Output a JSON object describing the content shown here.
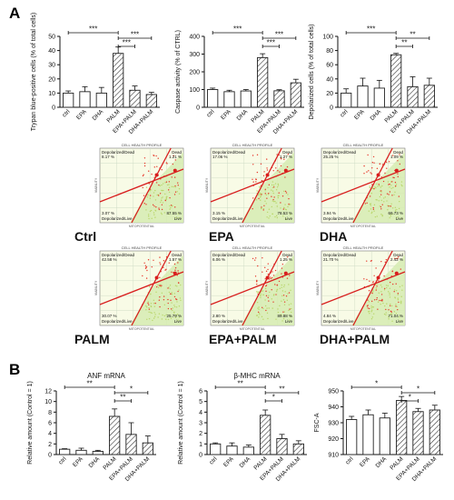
{
  "panel_labels": [
    "A",
    "B"
  ],
  "significance": {
    "p001": "***",
    "p01": "**",
    "p05": "*"
  },
  "colors": {
    "bar_edge": "#222222",
    "bar_fill": "#ffffff",
    "hatch": "#333333",
    "flow_bg": "#f8fbe6",
    "flow_zone": "#d6ebb2",
    "flow_grid": "#c8d8c0",
    "flow_points": "#e63a2c",
    "flow_line": "#d81e1e",
    "flow_points_live": "#b9d66b"
  },
  "chart_data": [
    {
      "type": "bar",
      "ylabel": "Trypan blue-positive cells (% of total cells)",
      "categories": [
        "ctrl",
        "EPA",
        "DHA",
        "PALM",
        "EPA+PALM",
        "DHA+PALM"
      ],
      "values": [
        10,
        11,
        10,
        38,
        12,
        9
      ],
      "errors": [
        1.5,
        3.5,
        4,
        4.5,
        3,
        1.5
      ],
      "hatched": [
        false,
        false,
        false,
        true,
        true,
        true
      ],
      "ylim": [
        0,
        50
      ],
      "yticks": [
        0,
        10,
        20,
        30,
        40,
        50
      ],
      "brackets": [
        {
          "from": 0,
          "to": 3,
          "label": "***"
        },
        {
          "from": 3,
          "to": 5,
          "label": "***"
        },
        {
          "from": 3,
          "to": 4,
          "label": "***"
        }
      ]
    },
    {
      "type": "bar",
      "ylabel": "Caspase activity (% of CTRL)",
      "categories": [
        "ctrl",
        "EPA",
        "DHA",
        "PALM",
        "EPA+PALM",
        "DHA+PALM"
      ],
      "values": [
        100,
        88,
        92,
        280,
        93,
        138
      ],
      "errors": [
        8,
        8,
        8,
        22,
        6,
        20
      ],
      "hatched": [
        false,
        false,
        false,
        true,
        true,
        true
      ],
      "ylim": [
        0,
        400
      ],
      "yticks": [
        0,
        100,
        200,
        300,
        400
      ],
      "brackets": [
        {
          "from": 0,
          "to": 3,
          "label": "***"
        },
        {
          "from": 3,
          "to": 5,
          "label": "***"
        },
        {
          "from": 3,
          "to": 4,
          "label": "***"
        }
      ]
    },
    {
      "type": "bar",
      "ylabel": "Depolarized cells (% of total cells)",
      "categories": [
        "ctrl",
        "EPA",
        "DHA",
        "PALM",
        "EPA+PALM",
        "DHA+PALM"
      ],
      "values": [
        20,
        30,
        27,
        74,
        29,
        31
      ],
      "errors": [
        6,
        11,
        11,
        2,
        14,
        10
      ],
      "hatched": [
        false,
        false,
        false,
        true,
        true,
        true
      ],
      "ylim": [
        0,
        100
      ],
      "yticks": [
        0,
        20,
        40,
        60,
        80,
        100
      ],
      "brackets": [
        {
          "from": 0,
          "to": 3,
          "label": "***"
        },
        {
          "from": 3,
          "to": 5,
          "label": "**"
        },
        {
          "from": 3,
          "to": 4,
          "label": "**"
        }
      ]
    },
    {
      "type": "bar",
      "title": "ANF mRNA",
      "ylabel": "Relative amount (Control = 1)",
      "categories": [
        "ctrl",
        "EPA",
        "DHA",
        "PALM",
        "EPA+PALM",
        "DHA+PALM"
      ],
      "values": [
        1,
        0.8,
        0.6,
        7.2,
        3.8,
        2.2
      ],
      "errors": [
        0.1,
        0.4,
        0.2,
        1.4,
        2.2,
        1.3
      ],
      "hatched": [
        false,
        false,
        false,
        true,
        true,
        true
      ],
      "ylim": [
        0,
        12
      ],
      "yticks": [
        0,
        2,
        4,
        6,
        8,
        10,
        12
      ],
      "brackets": [
        {
          "from": 0,
          "to": 3,
          "label": "**"
        },
        {
          "from": 3,
          "to": 5,
          "label": "*"
        },
        {
          "from": 3,
          "to": 4,
          "label": "**"
        }
      ]
    },
    {
      "type": "bar",
      "title": "β-MHC mRNA",
      "ylabel": "Relative amount (Control = 1)",
      "categories": [
        "ctrl",
        "EPA",
        "DHA",
        "PALM",
        "EPA+PALM",
        "DHA+PALM"
      ],
      "values": [
        1,
        0.8,
        0.7,
        3.7,
        1.5,
        1.0
      ],
      "errors": [
        0.1,
        0.3,
        0.2,
        0.5,
        0.4,
        0.3
      ],
      "hatched": [
        false,
        false,
        false,
        true,
        true,
        true
      ],
      "ylim": [
        0,
        6
      ],
      "yticks": [
        0,
        1,
        2,
        3,
        4,
        5,
        6
      ],
      "brackets": [
        {
          "from": 0,
          "to": 3,
          "label": "**"
        },
        {
          "from": 3,
          "to": 5,
          "label": "**"
        },
        {
          "from": 3,
          "to": 4,
          "label": "*"
        }
      ]
    },
    {
      "type": "bar",
      "ylabel": "FSC-A",
      "categories": [
        "ctrl",
        "EPA",
        "DHA",
        "PALM",
        "EPA+PALM",
        "DHA+PALM"
      ],
      "values": [
        932,
        935,
        933,
        944,
        937,
        938
      ],
      "errors": [
        2,
        3,
        3,
        2.5,
        2,
        3
      ],
      "hatched": [
        false,
        false,
        false,
        true,
        true,
        true
      ],
      "ylim": [
        910,
        950
      ],
      "yticks": [
        910,
        920,
        930,
        940,
        950
      ],
      "brackets": [
        {
          "from": 0,
          "to": 3,
          "label": "*"
        },
        {
          "from": 3,
          "to": 5,
          "label": "*"
        },
        {
          "from": 3,
          "to": 4,
          "label": "*"
        }
      ]
    },
    {
      "type": "scatter",
      "plots": [
        {
          "name": "Ctrl",
          "header": "CELL HEALTH PROFILE",
          "tl_label": "Depolarized/Dead",
          "tl_value": "8.17 %",
          "tr_label": "Dead",
          "tr_value": "1.21 %",
          "bl_value": "3.07 %",
          "bl_label": "Depolarized/Live",
          "br_value": "87.55 %",
          "br_label": "Live",
          "xlabel": "MITOPOTENTIAL",
          "ylabel": "VIABILITY"
        },
        {
          "name": "EPA",
          "header": "CELL HEALTH PROFILE",
          "tl_label": "Depolarized/Dead",
          "tl_value": "17.06 %",
          "tr_label": "Dead",
          "tr_value": "1.27 %",
          "bl_value": "3.15 %",
          "bl_label": "Depolarized/Live",
          "br_value": "78.53 %",
          "br_label": "Live",
          "xlabel": "MITOPOTENTIAL",
          "ylabel": "VIABILITY"
        },
        {
          "name": "DHA",
          "header": "CELL HEALTH PROFILE",
          "tl_label": "Depolarized/Dead",
          "tl_value": "25.25 %",
          "tr_label": "Dead",
          "tr_value": "1.09 %",
          "bl_value": "3.94 %",
          "bl_label": "Depolarized/Live",
          "br_value": "69.73 %",
          "br_label": "Live",
          "xlabel": "MITOPOTENTIAL",
          "ylabel": "VIABILITY"
        },
        {
          "name": "PALM",
          "header": "CELL HEALTH PROFILE",
          "tl_label": "Depolarized/Dead",
          "tl_value": "42.58 %",
          "tr_label": "Dead",
          "tr_value": "1.57 %",
          "bl_value": "30.07 %",
          "bl_label": "Depolarized/Live",
          "br_value": "25.79 %",
          "br_label": "Live",
          "xlabel": "MITOPOTENTIAL",
          "ylabel": "VIABILITY"
        },
        {
          "name": "EPA+PALM",
          "header": "CELL HEALTH PROFILE",
          "tl_label": "Depolarized/Dead",
          "tl_value": "6.06 %",
          "tr_label": "Dead",
          "tr_value": "1.25 %",
          "bl_value": "2.80 %",
          "bl_label": "Depolarized/Live",
          "br_value": "89.88 %",
          "br_label": "Live",
          "xlabel": "MITOPOTENTIAL",
          "ylabel": "VIABILITY"
        },
        {
          "name": "DHA+PALM",
          "header": "CELL HEALTH PROFILE",
          "tl_label": "Depolarized/Dead",
          "tl_value": "21.70 %",
          "tr_label": "Dead",
          "tr_value": "2.42 %",
          "bl_value": "4.84 %",
          "bl_label": "Depolarized/Live",
          "br_value": "71.04 %",
          "br_label": "Live",
          "xlabel": "MITOPOTENTIAL",
          "ylabel": "VIABILITY"
        }
      ]
    }
  ]
}
